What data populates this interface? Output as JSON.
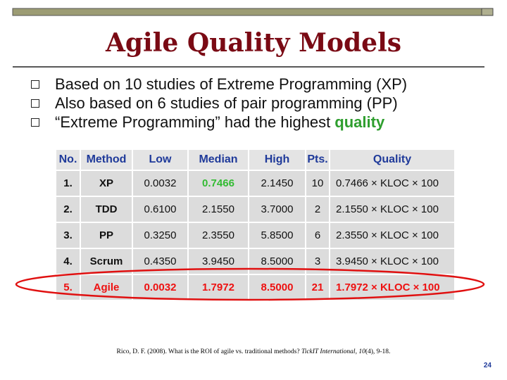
{
  "header": {
    "title": "Agile Quality Models"
  },
  "bullets": [
    {
      "text": "Based on 10 studies of Extreme Programming (XP)"
    },
    {
      "text": "Also based on 6 studies of pair programming (PP)"
    },
    {
      "text": "“Extreme Programming” had the highest",
      "emphasis": "quality"
    }
  ],
  "table": {
    "columns": [
      "No.",
      "Method",
      "Low",
      "Median",
      "High",
      "Pts.",
      "Quality"
    ],
    "rows": [
      [
        "1.",
        "XP",
        "0.0032",
        "0.7466",
        "2.1450",
        "10",
        "0.7466 × KLOC × 100"
      ],
      [
        "2.",
        "TDD",
        "0.6100",
        "2.1550",
        "3.7000",
        "2",
        "2.1550 × KLOC × 100"
      ],
      [
        "3.",
        "PP",
        "0.3250",
        "2.3550",
        "5.8500",
        "6",
        "2.3550 × KLOC × 100"
      ],
      [
        "4.",
        "Scrum",
        "0.4350",
        "3.9450",
        "8.5000",
        "3",
        "3.9450 × KLOC × 100"
      ],
      [
        "5.",
        "Agile",
        "0.0032",
        "1.7972",
        "8.5000",
        "21",
        "1.7972 × KLOC × 100"
      ]
    ],
    "best": {
      "row": 0,
      "col": 3,
      "color": "#33bb33"
    },
    "highlight": {
      "row": 4,
      "color": "#ee1111"
    }
  },
  "citation": [
    {
      "text": "Rico, D. F. (2008). What is the ROI of agile vs. traditional methods? ",
      "italic": false
    },
    {
      "text": "TickIT International",
      "italic": true
    },
    {
      "text": ", ",
      "italic": false
    },
    {
      "text": "10",
      "italic": true
    },
    {
      "text": "(4), 9-18.",
      "italic": false
    }
  ],
  "page_number": "24"
}
